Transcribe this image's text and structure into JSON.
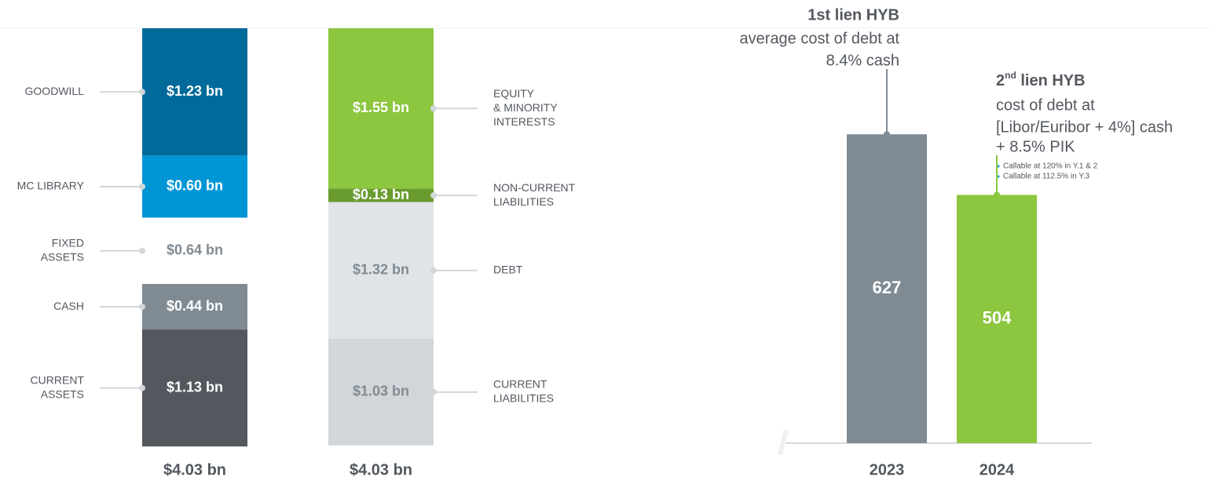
{
  "chart_data": [
    {
      "type": "stacked-bar",
      "label_side": "left",
      "total": 4.03,
      "total_label": "$4.03 bn",
      "segments": [
        {
          "name": [
            "GOODWILL"
          ],
          "value": 1.23,
          "value_label": "$1.23 bn",
          "color": "#006a9b",
          "label_color": "#ffffff"
        },
        {
          "name": [
            "MC LIBRARY"
          ],
          "value": 0.6,
          "value_label": "$0.60 bn",
          "color": "#0096d6",
          "label_color": "#ffffff"
        },
        {
          "name": [
            "FIXED",
            "ASSETS"
          ],
          "value": 0.64,
          "value_label": "$0.64 bn",
          "color": "#ffffff",
          "label_color": "#7f8a93"
        },
        {
          "name": [
            "CASH"
          ],
          "value": 0.44,
          "value_label": "$0.44 bn",
          "color": "#7f8a93",
          "label_color": "#ffffff"
        },
        {
          "name": [
            "CURRENT",
            "ASSETS"
          ],
          "value": 1.13,
          "value_label": "$1.13 bn",
          "color": "#53585f",
          "label_color": "#ffffff"
        }
      ]
    },
    {
      "type": "stacked-bar",
      "label_side": "right",
      "total": 4.03,
      "total_label": "$4.03 bn",
      "segments": [
        {
          "name": [
            "EQUITY",
            "& MINORITY",
            "INTERESTS"
          ],
          "value": 1.55,
          "value_label": "$1.55 bn",
          "color": "#8dc63f",
          "label_color": "#ffffff"
        },
        {
          "name": [
            "NON-CURRENT",
            "LIABILITIES"
          ],
          "value": 0.13,
          "value_label": "$0.13 bn",
          "color": "#6a9b2f",
          "label_color": "#ffffff"
        },
        {
          "name": [
            "DEBT"
          ],
          "value": 1.32,
          "value_label": "$1.32 bn",
          "color": "#e1e4e6",
          "label_color": "#7f8a93"
        },
        {
          "name": [
            "CURRENT",
            "LIABILITIES"
          ],
          "value": 1.03,
          "value_label": "$1.03 bn",
          "color": "#d3d6d9",
          "label_color": "#7f8a93"
        }
      ]
    },
    {
      "type": "bar",
      "categories": [
        "2023",
        "2024"
      ],
      "values": [
        627,
        504
      ],
      "colors": [
        "#7f8a93",
        "#8dc63f"
      ],
      "annotations": [
        {
          "title": "1st lien HYB",
          "lines": [
            "average cost of debt at",
            "8.4% cash"
          ]
        },
        {
          "title_number": "2",
          "title_suffix": "nd",
          "title_rest": " lien HYB",
          "lines": [
            "cost of debt at",
            "[Libor/Euribor + 4%] cash",
            "+ 8.5% PIK"
          ],
          "bullets": [
            "Callable at 120% in Y.1 & 2",
            "Callable at 112.5% in Y.3"
          ]
        }
      ]
    }
  ]
}
